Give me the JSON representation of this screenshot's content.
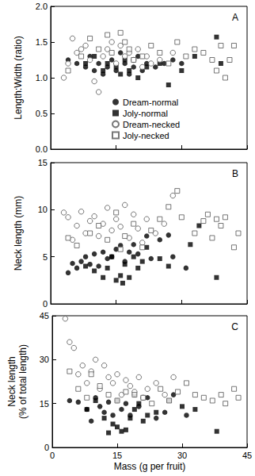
{
  "chart_data": [
    {
      "type": "scatter",
      "title": "A",
      "ylabel": "Length:Width (ratio)",
      "xlim": [
        0,
        45
      ],
      "xticks": [
        0,
        15,
        30,
        45
      ],
      "ylim": [
        0,
        2
      ],
      "yticks": [
        {
          "value": 0,
          "label": "0.0"
        },
        {
          "value": 0.5,
          "label": "0.5"
        },
        {
          "value": 1,
          "label": "1.0"
        },
        {
          "value": 1.5,
          "label": "1.5"
        },
        {
          "value": 2,
          "label": "2.0"
        }
      ],
      "grid": false,
      "legend": "lower center",
      "tick_labels": "y",
      "series": [
        {
          "name": "Dream-normal",
          "color": "#000000",
          "marker": "circle",
          "x": [
            4,
            6,
            8,
            9,
            10,
            11,
            12,
            13,
            14,
            15,
            16,
            17,
            18,
            19,
            20,
            21,
            22,
            24,
            26,
            28,
            30
          ],
          "values": [
            1.25,
            1.2,
            1.15,
            1.3,
            1.1,
            1.2,
            1.05,
            1.15,
            1.25,
            1.1,
            1.35,
            1.2,
            1.05,
            1.15,
            1.3,
            1.1,
            1.2,
            1.15,
            1.2,
            1.25,
            1.2
          ]
        },
        {
          "name": "Joly-normal",
          "color": "#000000",
          "marker": "square",
          "x": [
            8,
            10,
            12,
            13,
            15,
            16,
            17,
            18,
            20,
            22,
            25,
            27,
            30,
            33,
            38,
            39
          ],
          "values": [
            1.2,
            1.3,
            1.1,
            1.2,
            1.15,
            1.05,
            1.25,
            1.1,
            1.0,
            1.15,
            1.2,
            0.9,
            1.1,
            1.3,
            1.57,
            1.2
          ]
        },
        {
          "name": "Dream-necked",
          "color": "#555555",
          "marker": "circle-open",
          "x": [
            3,
            4,
            5,
            6,
            7,
            8,
            9,
            10,
            11,
            12,
            13,
            14,
            15,
            16,
            17,
            18,
            19,
            20,
            21,
            22,
            23,
            25,
            28
          ],
          "values": [
            1.0,
            1.2,
            1.55,
            1.35,
            1.4,
            1.45,
            1.25,
            0.95,
            0.8,
            1.3,
            1.4,
            1.5,
            1.2,
            1.45,
            1.3,
            1.35,
            1.25,
            1.4,
            1.15,
            1.3,
            1.2,
            1.25,
            1.35
          ]
        },
        {
          "name": "Joly-necked",
          "color": "#555555",
          "marker": "square-open",
          "x": [
            4,
            7,
            9,
            11,
            13,
            14,
            16,
            17,
            18,
            19,
            21,
            23,
            25,
            27,
            29,
            31,
            33,
            35,
            37,
            38,
            39,
            40,
            41,
            42
          ],
          "values": [
            1.1,
            1.3,
            1.55,
            1.4,
            1.6,
            1.35,
            1.63,
            1.5,
            1.4,
            1.25,
            1.3,
            1.45,
            1.35,
            1.2,
            1.5,
            1.3,
            1.4,
            1.35,
            1.25,
            1.1,
            1.45,
            1.0,
            1.25,
            1.45
          ]
        }
      ]
    },
    {
      "type": "scatter",
      "title": "B",
      "ylabel": "Neck length (mm)",
      "xlim": [
        0,
        45
      ],
      "xticks": [
        0,
        15,
        30,
        45
      ],
      "ylim": [
        0,
        15
      ],
      "yticks": [
        0,
        5,
        10,
        15
      ],
      "grid": false,
      "tick_labels": "y",
      "series": [
        {
          "name": "Dream-normal",
          "color": "#000000",
          "marker": "circle",
          "x": [
            4,
            5,
            6,
            7,
            8,
            9,
            10,
            11,
            12,
            13,
            14,
            15,
            16,
            17,
            18,
            19,
            20,
            22,
            23,
            25,
            27,
            28,
            31
          ],
          "values": [
            3.3,
            4.3,
            3.8,
            4.5,
            5.0,
            4.2,
            5.3,
            4.0,
            5.5,
            4.8,
            5.0,
            5.8,
            6.2,
            4.5,
            5.5,
            6.3,
            5.3,
            7.2,
            4.8,
            6.8,
            7.3,
            5.0,
            3.8
          ]
        },
        {
          "name": "Joly-normal",
          "color": "#000000",
          "marker": "square",
          "x": [
            8,
            10,
            12,
            13,
            14,
            15,
            16,
            16.5,
            17,
            18,
            19,
            20,
            21,
            22,
            25,
            27,
            32,
            34,
            38
          ],
          "values": [
            4.0,
            3.5,
            2.8,
            3.8,
            5.0,
            2.5,
            3.0,
            2.2,
            4.2,
            2.8,
            5.0,
            3.8,
            4.5,
            6.0,
            4.8,
            4.0,
            6.3,
            8.3,
            2.8
          ]
        },
        {
          "name": "Dream-necked",
          "color": "#555555",
          "marker": "circle-open",
          "x": [
            3,
            4,
            5,
            6,
            7,
            8,
            9,
            10,
            11,
            12,
            13,
            14,
            15,
            16,
            17,
            18,
            19,
            20,
            21,
            22,
            24,
            26,
            28
          ],
          "values": [
            9.7,
            9.2,
            6.8,
            8.3,
            9.8,
            7.5,
            8.8,
            9.3,
            7.2,
            8.5,
            10.2,
            7.8,
            9.0,
            8.2,
            10.5,
            7.0,
            9.5,
            8.0,
            6.5,
            9.0,
            7.5,
            8.5,
            11.5
          ]
        },
        {
          "name": "Joly-necked",
          "color": "#555555",
          "marker": "square-open",
          "x": [
            4,
            6,
            9,
            11,
            13,
            15,
            16,
            17,
            19,
            21,
            23,
            25,
            27,
            29,
            30,
            33,
            35,
            36,
            37,
            38,
            39,
            40,
            42,
            43
          ],
          "values": [
            7.0,
            6.2,
            7.5,
            8.3,
            6.8,
            9.7,
            5.8,
            7.2,
            8.5,
            6.0,
            7.8,
            9.0,
            10.3,
            12.0,
            9.2,
            7.5,
            8.8,
            9.5,
            7.0,
            9.0,
            8.3,
            9.2,
            6.0,
            7.5
          ]
        }
      ]
    },
    {
      "type": "scatter",
      "title": "C",
      "xlabel": "Mass (g per fruit)",
      "ylabel": "Neck length\n(% of total length)",
      "xlim": [
        0,
        45
      ],
      "xticks": [
        0,
        15,
        30,
        45
      ],
      "ylim": [
        0,
        45
      ],
      "yticks": [
        0,
        15,
        30,
        45
      ],
      "grid": false,
      "series": [
        {
          "name": "Dream-normal",
          "color": "#000000",
          "marker": "circle",
          "x": [
            4,
            6,
            8,
            9,
            10,
            11,
            12,
            13,
            14,
            15,
            16,
            17,
            18,
            19,
            20,
            22,
            24,
            26,
            28,
            31
          ],
          "values": [
            16,
            15.5,
            13,
            9,
            17,
            14,
            12,
            15.5,
            11,
            16,
            13,
            15,
            11,
            18,
            14,
            17,
            10,
            12,
            18,
            11
          ]
        },
        {
          "name": "Joly-normal",
          "color": "#000000",
          "marker": "square",
          "x": [
            8,
            10,
            12,
            13,
            14,
            15,
            16,
            17,
            18,
            19,
            20,
            21,
            22,
            24,
            27,
            30,
            33,
            38
          ],
          "values": [
            13,
            16,
            10,
            5,
            8,
            7,
            5.5,
            6,
            10,
            13,
            15,
            9,
            11,
            12,
            16,
            14,
            13,
            5.5
          ]
        },
        {
          "name": "Dream-necked",
          "color": "#555555",
          "marker": "circle-open",
          "x": [
            3,
            4,
            5,
            6,
            7,
            8,
            9,
            10,
            11,
            12,
            13,
            14,
            15,
            16,
            17,
            18,
            19,
            20,
            21,
            22,
            24,
            26,
            28
          ],
          "values": [
            44,
            36,
            34,
            25,
            28,
            22,
            26,
            30,
            20,
            28,
            24,
            22,
            25,
            18,
            23,
            21,
            19,
            24,
            17,
            20,
            22,
            18,
            24
          ]
        },
        {
          "name": "Joly-necked",
          "color": "#555555",
          "marker": "square-open",
          "x": [
            4,
            6,
            8,
            9,
            11,
            13,
            15,
            17,
            19,
            21,
            23,
            25,
            27,
            29,
            31,
            33,
            35,
            37,
            39,
            40,
            42,
            43
          ],
          "values": [
            26,
            20,
            17,
            25,
            21,
            18,
            16,
            19,
            18,
            17,
            15,
            20,
            16,
            19,
            22,
            18,
            17,
            16,
            18,
            15,
            20,
            17
          ]
        }
      ]
    }
  ]
}
